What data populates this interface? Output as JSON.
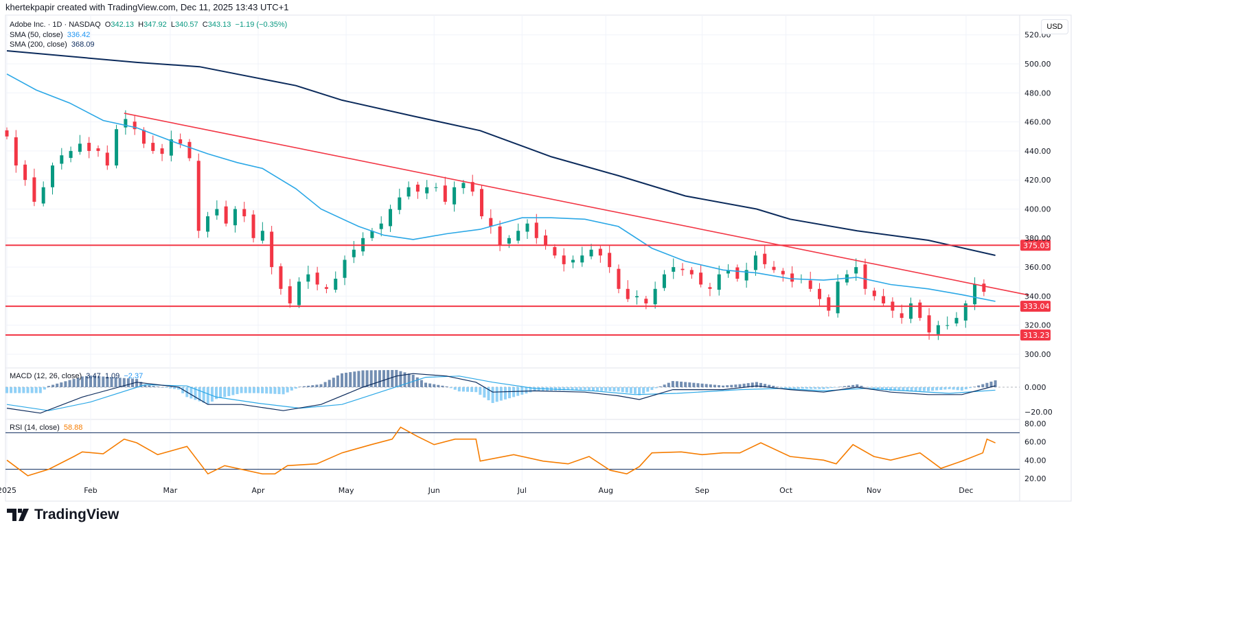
{
  "header": {
    "credit": "khertekpapir created with TradingView.com, Dec 11, 2025 13:43 UTC+1"
  },
  "legend": {
    "symbol": "Adobe Inc. · 1D · NASDAQ",
    "o_label": "O",
    "o": "342.13",
    "h_label": "H",
    "h": "347.92",
    "l_label": "L",
    "l": "340.57",
    "c_label": "C",
    "c": "343.13",
    "change": "−1.19 (−0.35%)",
    "sma50_label": "SMA (50, close)",
    "sma50": "336.42",
    "sma200_label": "SMA (200, close)",
    "sma200": "368.09",
    "macd_label": "MACD (12, 26, close)",
    "macd_hist": "3.47",
    "macd_line": "1.09",
    "macd_signal": "−2.37",
    "rsi_label": "RSI (14, close)",
    "rsi": "58.88"
  },
  "currency": "USD",
  "brand": "TradingView",
  "colors": {
    "up": "#089981",
    "down": "#F23645",
    "sma50": "#2aa7e6",
    "sma200": "#0b2a5b",
    "level": "#F23645",
    "rsi": "#f57c00"
  },
  "chart_data": {
    "type": "candlestick",
    "title": "Adobe Inc. · 1D · NASDAQ",
    "x_unit": "trading-day index (2025)",
    "x_range": [
      0,
      260
    ],
    "month_ticks": [
      {
        "label": "2025",
        "day": 0
      },
      {
        "label": "Feb",
        "day": 20
      },
      {
        "label": "Mar",
        "day": 39
      },
      {
        "label": "Apr",
        "day": 60
      },
      {
        "label": "May",
        "day": 81
      },
      {
        "label": "Jun",
        "day": 102
      },
      {
        "label": "Jul",
        "day": 123
      },
      {
        "label": "Aug",
        "day": 143
      },
      {
        "label": "Sep",
        "day": 166
      },
      {
        "label": "Oct",
        "day": 186
      },
      {
        "label": "Nov",
        "day": 207
      },
      {
        "label": "Dec",
        "day": 229
      }
    ],
    "price_axis": {
      "ylim": [
        290,
        522
      ],
      "ticks": [
        "300.00",
        "320.00",
        "340.00",
        "360.00",
        "380.00",
        "400.00",
        "420.00",
        "440.00",
        "460.00",
        "480.00",
        "500.00",
        "520.00"
      ]
    },
    "closes_every_2_days": [
      450,
      430,
      420,
      405,
      415,
      430,
      437,
      440,
      445,
      440,
      440,
      430,
      455,
      462,
      455,
      445,
      440,
      438,
      448,
      445,
      435,
      385,
      395,
      400,
      390,
      400,
      395,
      380,
      385,
      360,
      345,
      335,
      350,
      355,
      348,
      345,
      352,
      365,
      372,
      380,
      385,
      390,
      400,
      408,
      415,
      412,
      415,
      415,
      405,
      415,
      418,
      412,
      395,
      388,
      375,
      380,
      385,
      390,
      380,
      375,
      368,
      362,
      365,
      368,
      372,
      368,
      360,
      345,
      338,
      340,
      335,
      345,
      355,
      360,
      358,
      355,
      348,
      345,
      355,
      358,
      352,
      358,
      368,
      362,
      358,
      355,
      350,
      352,
      345,
      338,
      330,
      350,
      355,
      360,
      345,
      340,
      335,
      330,
      325,
      335,
      325,
      315,
      320,
      320,
      325,
      335,
      348,
      343
    ],
    "sma50": [
      [
        0,
        493
      ],
      [
        7,
        482
      ],
      [
        15,
        473
      ],
      [
        23,
        461
      ],
      [
        31,
        456
      ],
      [
        41,
        445
      ],
      [
        48,
        438
      ],
      [
        55,
        432
      ],
      [
        61,
        428
      ],
      [
        69,
        414
      ],
      [
        75,
        400
      ],
      [
        84,
        388
      ],
      [
        90,
        382
      ],
      [
        97,
        379
      ],
      [
        105,
        383
      ],
      [
        113,
        386
      ],
      [
        123,
        394
      ],
      [
        130,
        394
      ],
      [
        138,
        393
      ],
      [
        146,
        388
      ],
      [
        154,
        373
      ],
      [
        162,
        364
      ],
      [
        171,
        358
      ],
      [
        179,
        356
      ],
      [
        187,
        352
      ],
      [
        195,
        351
      ],
      [
        203,
        353
      ],
      [
        211,
        348
      ],
      [
        220,
        345
      ],
      [
        228,
        341
      ],
      [
        236,
        336.42
      ]
    ],
    "sma200": [
      [
        0,
        509
      ],
      [
        31,
        501
      ],
      [
        46,
        498
      ],
      [
        69,
        485
      ],
      [
        80,
        475
      ],
      [
        97,
        464
      ],
      [
        113,
        454
      ],
      [
        130,
        436
      ],
      [
        146,
        423
      ],
      [
        162,
        409
      ],
      [
        179,
        400
      ],
      [
        187,
        393
      ],
      [
        203,
        385
      ],
      [
        220,
        378.5
      ],
      [
        236,
        368.09
      ]
    ],
    "trendline": {
      "from": [
        28,
        466
      ],
      "to": [
        244,
        340.7
      ]
    },
    "levels": [
      {
        "value": 375.03,
        "label": "375.03"
      },
      {
        "value": 333.04,
        "label": "333.04"
      },
      {
        "value": 313.23,
        "label": "313.23"
      }
    ],
    "macd": {
      "ylim": [
        -25,
        10
      ],
      "ticks": [
        "0.000",
        "−20.00"
      ],
      "macd": [
        [
          0,
          -17
        ],
        [
          8,
          -21
        ],
        [
          18,
          -8
        ],
        [
          31,
          4
        ],
        [
          41,
          0
        ],
        [
          48,
          -14
        ],
        [
          56,
          -14
        ],
        [
          66,
          -19
        ],
        [
          75,
          -14
        ],
        [
          85,
          0
        ],
        [
          93,
          9
        ],
        [
          97,
          11
        ],
        [
          105,
          9
        ],
        [
          112,
          4
        ],
        [
          116,
          -4
        ],
        [
          126,
          -3
        ],
        [
          138,
          -4
        ],
        [
          146,
          -7
        ],
        [
          151,
          -10
        ],
        [
          159,
          -2
        ],
        [
          171,
          -2
        ],
        [
          179,
          1
        ],
        [
          187,
          -2
        ],
        [
          195,
          -4
        ],
        [
          203,
          0
        ],
        [
          211,
          -4
        ],
        [
          220,
          -6
        ],
        [
          228,
          -6
        ],
        [
          236,
          1.09
        ]
      ],
      "signal": [
        [
          0,
          -14
        ],
        [
          10,
          -19
        ],
        [
          20,
          -12
        ],
        [
          33,
          2
        ],
        [
          43,
          1
        ],
        [
          50,
          -8
        ],
        [
          60,
          -13
        ],
        [
          70,
          -17
        ],
        [
          80,
          -14
        ],
        [
          90,
          -3
        ],
        [
          100,
          8
        ],
        [
          108,
          9
        ],
        [
          116,
          4
        ],
        [
          126,
          -1
        ],
        [
          140,
          -3
        ],
        [
          150,
          -6
        ],
        [
          160,
          -5
        ],
        [
          175,
          -2
        ],
        [
          185,
          -1
        ],
        [
          195,
          -3
        ],
        [
          205,
          -1
        ],
        [
          215,
          -3
        ],
        [
          225,
          -5
        ],
        [
          236,
          -2.37
        ]
      ]
    },
    "rsi": {
      "ylim": [
        15,
        85
      ],
      "bands": [
        70,
        30
      ],
      "ticks": [
        "20.00",
        "40.00",
        "60.00",
        "80.00"
      ],
      "values": [
        [
          0,
          40
        ],
        [
          5,
          23
        ],
        [
          10,
          30
        ],
        [
          16,
          44
        ],
        [
          18,
          49
        ],
        [
          23,
          47
        ],
        [
          28,
          63
        ],
        [
          31,
          59
        ],
        [
          36,
          46
        ],
        [
          43,
          55
        ],
        [
          48,
          25
        ],
        [
          52,
          34
        ],
        [
          61,
          25
        ],
        [
          64,
          25
        ],
        [
          67,
          34
        ],
        [
          74,
          36
        ],
        [
          80,
          48
        ],
        [
          87,
          57
        ],
        [
          92,
          63
        ],
        [
          94,
          76
        ],
        [
          98,
          66
        ],
        [
          102,
          57
        ],
        [
          107,
          63
        ],
        [
          112,
          63
        ],
        [
          113,
          39
        ],
        [
          121,
          46
        ],
        [
          128,
          39
        ],
        [
          134,
          36
        ],
        [
          139,
          44
        ],
        [
          144,
          29
        ],
        [
          148,
          25
        ],
        [
          151,
          33
        ],
        [
          154,
          48
        ],
        [
          161,
          49
        ],
        [
          166,
          46
        ],
        [
          171,
          48
        ],
        [
          175,
          48
        ],
        [
          180,
          59
        ],
        [
          187,
          44
        ],
        [
          195,
          40
        ],
        [
          198,
          36
        ],
        [
          202,
          57
        ],
        [
          207,
          44
        ],
        [
          211,
          40
        ],
        [
          218,
          48
        ],
        [
          223,
          31
        ],
        [
          228,
          39
        ],
        [
          233,
          48
        ],
        [
          234,
          63
        ],
        [
          236,
          58.88
        ]
      ]
    }
  }
}
